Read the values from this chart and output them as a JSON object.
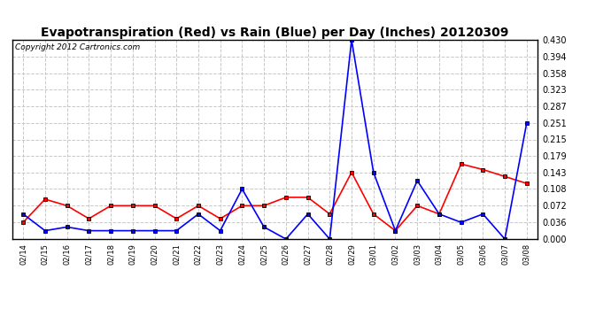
{
  "title": "Evapotranspiration (Red) vs Rain (Blue) per Day (Inches) 20120309",
  "copyright": "Copyright 2012 Cartronics.com",
  "x_labels": [
    "02/14",
    "02/15",
    "02/16",
    "02/17",
    "02/18",
    "02/19",
    "02/20",
    "02/21",
    "02/22",
    "02/23",
    "02/24",
    "02/25",
    "02/26",
    "02/27",
    "02/28",
    "02/29",
    "03/01",
    "03/02",
    "03/03",
    "03/04",
    "03/05",
    "03/06",
    "03/07",
    "03/08"
  ],
  "red_data": [
    0.036,
    0.086,
    0.072,
    0.044,
    0.072,
    0.072,
    0.072,
    0.044,
    0.072,
    0.044,
    0.072,
    0.072,
    0.09,
    0.09,
    0.054,
    0.144,
    0.054,
    0.018,
    0.072,
    0.054,
    0.162,
    0.15,
    0.135,
    0.12
  ],
  "blue_data": [
    0.054,
    0.018,
    0.026,
    0.018,
    0.018,
    0.018,
    0.018,
    0.018,
    0.054,
    0.018,
    0.108,
    0.026,
    0.0,
    0.054,
    0.0,
    0.43,
    0.144,
    0.018,
    0.126,
    0.054,
    0.036,
    0.054,
    0.0,
    0.251
  ],
  "ylim": [
    0.0,
    0.43
  ],
  "yticks": [
    0.0,
    0.036,
    0.072,
    0.108,
    0.143,
    0.179,
    0.215,
    0.251,
    0.287,
    0.323,
    0.358,
    0.394,
    0.43
  ],
  "background_color": "#ffffff",
  "grid_color": "#c8c8c8",
  "red_color": "#ff0000",
  "blue_color": "#0000ff",
  "title_fontsize": 10,
  "copyright_fontsize": 6.5
}
